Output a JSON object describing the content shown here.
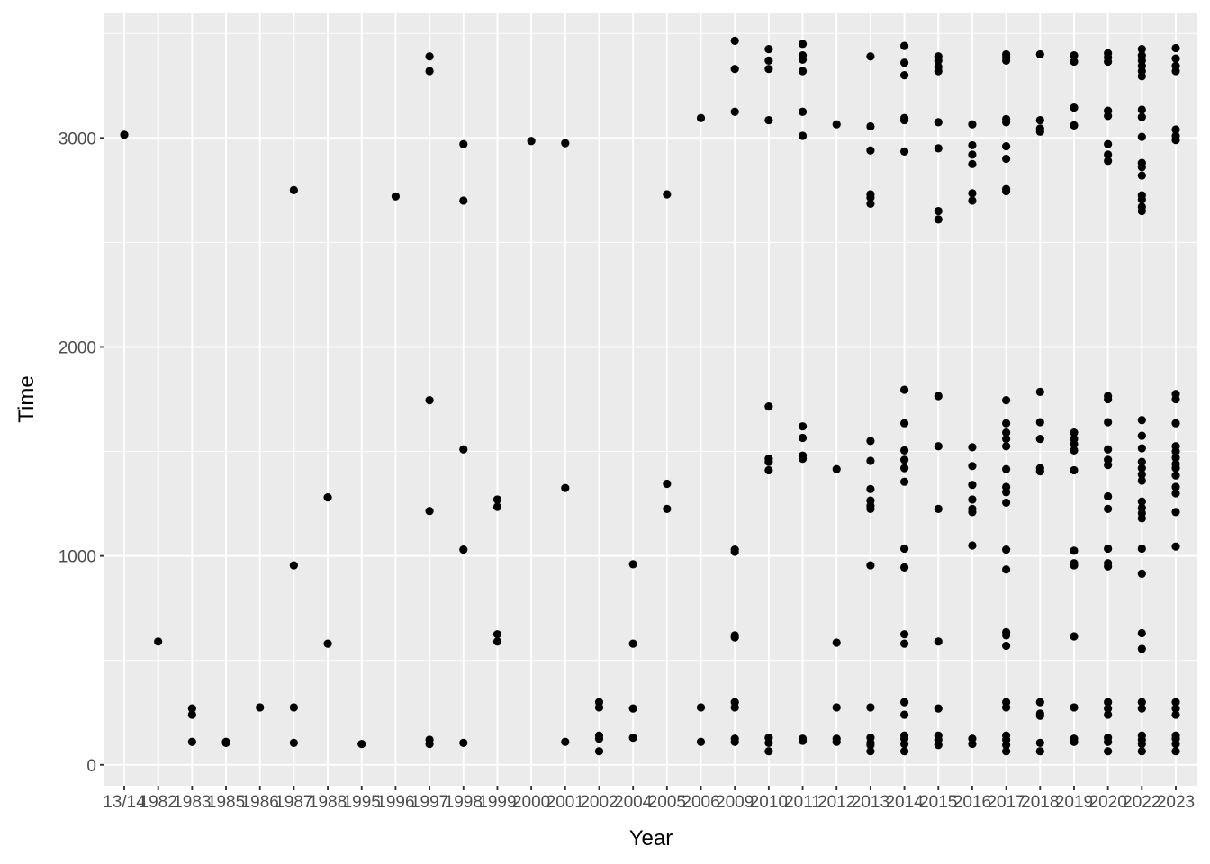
{
  "chart_data": {
    "type": "scatter",
    "title": "",
    "xlabel": "Year",
    "ylabel": "Time",
    "categories": [
      "13/14",
      "1982",
      "1983",
      "1985",
      "1986",
      "1987",
      "1988",
      "1995",
      "1996",
      "1997",
      "1998",
      "1999",
      "2000",
      "2001",
      "2002",
      "2004",
      "2005",
      "2006",
      "2009",
      "2010",
      "2011",
      "2012",
      "2013",
      "2014",
      "2015",
      "2016",
      "2017",
      "2018",
      "2019",
      "2020",
      "2022",
      "2023"
    ],
    "ylim": [
      -100,
      3600
    ],
    "yticks": [
      0,
      1000,
      2000,
      3000
    ],
    "yticklabels": [
      "0",
      "1000",
      "2000",
      "3000"
    ],
    "grid": true,
    "panel_color": "#ebebeb",
    "grid_color": "#ffffff",
    "point_color": "#000000",
    "points": [
      [
        "13/14",
        3015
      ],
      [
        "1982",
        590
      ],
      [
        "1983",
        270
      ],
      [
        "1983",
        240
      ],
      [
        "1983",
        110
      ],
      [
        "1985",
        110
      ],
      [
        "1985",
        105
      ],
      [
        "1986",
        275
      ],
      [
        "1987",
        2750
      ],
      [
        "1987",
        955
      ],
      [
        "1987",
        275
      ],
      [
        "1987",
        105
      ],
      [
        "1988",
        1280
      ],
      [
        "1988",
        580
      ],
      [
        "1995",
        100
      ],
      [
        "1996",
        2720
      ],
      [
        "1997",
        3390
      ],
      [
        "1997",
        3320
      ],
      [
        "1997",
        1745
      ],
      [
        "1997",
        1215
      ],
      [
        "1997",
        120
      ],
      [
        "1997",
        100
      ],
      [
        "1998",
        2970
      ],
      [
        "1998",
        2700
      ],
      [
        "1998",
        1510
      ],
      [
        "1998",
        1030
      ],
      [
        "1998",
        105
      ],
      [
        "1999",
        1270
      ],
      [
        "1999",
        1235
      ],
      [
        "1999",
        625
      ],
      [
        "1999",
        590
      ],
      [
        "2000",
        2985
      ],
      [
        "2001",
        2975
      ],
      [
        "2001",
        1325
      ],
      [
        "2001",
        110
      ],
      [
        "2002",
        300
      ],
      [
        "2002",
        275
      ],
      [
        "2002",
        140
      ],
      [
        "2002",
        125
      ],
      [
        "2002",
        65
      ],
      [
        "2004",
        960
      ],
      [
        "2004",
        580
      ],
      [
        "2004",
        270
      ],
      [
        "2004",
        130
      ],
      [
        "2005",
        2730
      ],
      [
        "2005",
        1345
      ],
      [
        "2005",
        1225
      ],
      [
        "2006",
        3095
      ],
      [
        "2006",
        275
      ],
      [
        "2006",
        110
      ],
      [
        "2009",
        3465
      ],
      [
        "2009",
        3330
      ],
      [
        "2009",
        3125
      ],
      [
        "2009",
        1030
      ],
      [
        "2009",
        1020
      ],
      [
        "2009",
        620
      ],
      [
        "2009",
        610
      ],
      [
        "2009",
        300
      ],
      [
        "2009",
        275
      ],
      [
        "2009",
        125
      ],
      [
        "2009",
        110
      ],
      [
        "2010",
        3425
      ],
      [
        "2010",
        3370
      ],
      [
        "2010",
        3330
      ],
      [
        "2010",
        3085
      ],
      [
        "2010",
        1715
      ],
      [
        "2010",
        1465
      ],
      [
        "2010",
        1450
      ],
      [
        "2010",
        1410
      ],
      [
        "2010",
        130
      ],
      [
        "2010",
        105
      ],
      [
        "2010",
        65
      ],
      [
        "2011",
        3450
      ],
      [
        "2011",
        3395
      ],
      [
        "2011",
        3375
      ],
      [
        "2011",
        3320
      ],
      [
        "2011",
        3125
      ],
      [
        "2011",
        3010
      ],
      [
        "2011",
        1620
      ],
      [
        "2011",
        1565
      ],
      [
        "2011",
        1480
      ],
      [
        "2011",
        1465
      ],
      [
        "2011",
        125
      ],
      [
        "2011",
        115
      ],
      [
        "2012",
        3065
      ],
      [
        "2012",
        1415
      ],
      [
        "2012",
        585
      ],
      [
        "2012",
        275
      ],
      [
        "2012",
        125
      ],
      [
        "2012",
        110
      ],
      [
        "2013",
        3390
      ],
      [
        "2013",
        3055
      ],
      [
        "2013",
        2940
      ],
      [
        "2013",
        2730
      ],
      [
        "2013",
        2715
      ],
      [
        "2013",
        2685
      ],
      [
        "2013",
        1550
      ],
      [
        "2013",
        1455
      ],
      [
        "2013",
        1320
      ],
      [
        "2013",
        1265
      ],
      [
        "2013",
        1240
      ],
      [
        "2013",
        1225
      ],
      [
        "2013",
        955
      ],
      [
        "2013",
        275
      ],
      [
        "2013",
        130
      ],
      [
        "2013",
        105
      ],
      [
        "2013",
        95
      ],
      [
        "2013",
        65
      ],
      [
        "2014",
        3440
      ],
      [
        "2014",
        3360
      ],
      [
        "2014",
        3300
      ],
      [
        "2014",
        3095
      ],
      [
        "2014",
        3085
      ],
      [
        "2014",
        2935
      ],
      [
        "2014",
        1795
      ],
      [
        "2014",
        1635
      ],
      [
        "2014",
        1505
      ],
      [
        "2014",
        1460
      ],
      [
        "2014",
        1420
      ],
      [
        "2014",
        1355
      ],
      [
        "2014",
        1035
      ],
      [
        "2014",
        945
      ],
      [
        "2014",
        625
      ],
      [
        "2014",
        580
      ],
      [
        "2014",
        300
      ],
      [
        "2014",
        240
      ],
      [
        "2014",
        140
      ],
      [
        "2014",
        125
      ],
      [
        "2014",
        100
      ],
      [
        "2014",
        65
      ],
      [
        "2015",
        3390
      ],
      [
        "2015",
        3370
      ],
      [
        "2015",
        3340
      ],
      [
        "2015",
        3320
      ],
      [
        "2015",
        3075
      ],
      [
        "2015",
        2950
      ],
      [
        "2015",
        2650
      ],
      [
        "2015",
        2610
      ],
      [
        "2015",
        1765
      ],
      [
        "2015",
        1525
      ],
      [
        "2015",
        1225
      ],
      [
        "2015",
        590
      ],
      [
        "2015",
        270
      ],
      [
        "2015",
        140
      ],
      [
        "2015",
        120
      ],
      [
        "2015",
        95
      ],
      [
        "2016",
        3065
      ],
      [
        "2016",
        2965
      ],
      [
        "2016",
        2920
      ],
      [
        "2016",
        2875
      ],
      [
        "2016",
        2735
      ],
      [
        "2016",
        2700
      ],
      [
        "2016",
        1520
      ],
      [
        "2016",
        1430
      ],
      [
        "2016",
        1340
      ],
      [
        "2016",
        1270
      ],
      [
        "2016",
        1225
      ],
      [
        "2016",
        1210
      ],
      [
        "2016",
        1050
      ],
      [
        "2016",
        125
      ],
      [
        "2016",
        100
      ],
      [
        "2017",
        3400
      ],
      [
        "2017",
        3385
      ],
      [
        "2017",
        3370
      ],
      [
        "2017",
        3090
      ],
      [
        "2017",
        3075
      ],
      [
        "2017",
        2960
      ],
      [
        "2017",
        2900
      ],
      [
        "2017",
        2755
      ],
      [
        "2017",
        2745
      ],
      [
        "2017",
        1745
      ],
      [
        "2017",
        1635
      ],
      [
        "2017",
        1590
      ],
      [
        "2017",
        1560
      ],
      [
        "2017",
        1525
      ],
      [
        "2017",
        1415
      ],
      [
        "2017",
        1330
      ],
      [
        "2017",
        1305
      ],
      [
        "2017",
        1255
      ],
      [
        "2017",
        1030
      ],
      [
        "2017",
        935
      ],
      [
        "2017",
        635
      ],
      [
        "2017",
        620
      ],
      [
        "2017",
        570
      ],
      [
        "2017",
        300
      ],
      [
        "2017",
        275
      ],
      [
        "2017",
        140
      ],
      [
        "2017",
        120
      ],
      [
        "2017",
        95
      ],
      [
        "2017",
        65
      ],
      [
        "2018",
        3400
      ],
      [
        "2018",
        3085
      ],
      [
        "2018",
        3045
      ],
      [
        "2018",
        3030
      ],
      [
        "2018",
        1785
      ],
      [
        "2018",
        1640
      ],
      [
        "2018",
        1560
      ],
      [
        "2018",
        1420
      ],
      [
        "2018",
        1405
      ],
      [
        "2018",
        300
      ],
      [
        "2018",
        245
      ],
      [
        "2018",
        235
      ],
      [
        "2018",
        105
      ],
      [
        "2018",
        65
      ],
      [
        "2019",
        3395
      ],
      [
        "2019",
        3365
      ],
      [
        "2019",
        3145
      ],
      [
        "2019",
        3060
      ],
      [
        "2019",
        1590
      ],
      [
        "2019",
        1560
      ],
      [
        "2019",
        1535
      ],
      [
        "2019",
        1505
      ],
      [
        "2019",
        1410
      ],
      [
        "2019",
        1025
      ],
      [
        "2019",
        965
      ],
      [
        "2019",
        955
      ],
      [
        "2019",
        615
      ],
      [
        "2019",
        275
      ],
      [
        "2019",
        125
      ],
      [
        "2019",
        110
      ],
      [
        "2020",
        3405
      ],
      [
        "2020",
        3385
      ],
      [
        "2020",
        3365
      ],
      [
        "2020",
        3130
      ],
      [
        "2020",
        3105
      ],
      [
        "2020",
        2970
      ],
      [
        "2020",
        2920
      ],
      [
        "2020",
        2890
      ],
      [
        "2020",
        1765
      ],
      [
        "2020",
        1750
      ],
      [
        "2020",
        1640
      ],
      [
        "2020",
        1510
      ],
      [
        "2020",
        1460
      ],
      [
        "2020",
        1435
      ],
      [
        "2020",
        1285
      ],
      [
        "2020",
        1225
      ],
      [
        "2020",
        1035
      ],
      [
        "2020",
        965
      ],
      [
        "2020",
        950
      ],
      [
        "2020",
        300
      ],
      [
        "2020",
        270
      ],
      [
        "2020",
        240
      ],
      [
        "2020",
        130
      ],
      [
        "2020",
        110
      ],
      [
        "2020",
        65
      ],
      [
        "2022",
        3425
      ],
      [
        "2022",
        3395
      ],
      [
        "2022",
        3370
      ],
      [
        "2022",
        3345
      ],
      [
        "2022",
        3320
      ],
      [
        "2022",
        3295
      ],
      [
        "2022",
        3135
      ],
      [
        "2022",
        3100
      ],
      [
        "2022",
        3005
      ],
      [
        "2022",
        2880
      ],
      [
        "2022",
        2860
      ],
      [
        "2022",
        2820
      ],
      [
        "2022",
        2725
      ],
      [
        "2022",
        2705
      ],
      [
        "2022",
        2670
      ],
      [
        "2022",
        2650
      ],
      [
        "2022",
        1650
      ],
      [
        "2022",
        1575
      ],
      [
        "2022",
        1515
      ],
      [
        "2022",
        1450
      ],
      [
        "2022",
        1420
      ],
      [
        "2022",
        1390
      ],
      [
        "2022",
        1360
      ],
      [
        "2022",
        1260
      ],
      [
        "2022",
        1230
      ],
      [
        "2022",
        1205
      ],
      [
        "2022",
        1180
      ],
      [
        "2022",
        1035
      ],
      [
        "2022",
        915
      ],
      [
        "2022",
        630
      ],
      [
        "2022",
        555
      ],
      [
        "2022",
        300
      ],
      [
        "2022",
        270
      ],
      [
        "2022",
        140
      ],
      [
        "2022",
        120
      ],
      [
        "2022",
        100
      ],
      [
        "2022",
        65
      ],
      [
        "2023",
        3430
      ],
      [
        "2023",
        3380
      ],
      [
        "2023",
        3345
      ],
      [
        "2023",
        3320
      ],
      [
        "2023",
        3040
      ],
      [
        "2023",
        3010
      ],
      [
        "2023",
        2990
      ],
      [
        "2023",
        1775
      ],
      [
        "2023",
        1750
      ],
      [
        "2023",
        1635
      ],
      [
        "2023",
        1525
      ],
      [
        "2023",
        1500
      ],
      [
        "2023",
        1470
      ],
      [
        "2023",
        1440
      ],
      [
        "2023",
        1420
      ],
      [
        "2023",
        1385
      ],
      [
        "2023",
        1330
      ],
      [
        "2023",
        1300
      ],
      [
        "2023",
        1210
      ],
      [
        "2023",
        1045
      ],
      [
        "2023",
        300
      ],
      [
        "2023",
        270
      ],
      [
        "2023",
        240
      ],
      [
        "2023",
        140
      ],
      [
        "2023",
        125
      ],
      [
        "2023",
        100
      ],
      [
        "2023",
        65
      ]
    ]
  }
}
